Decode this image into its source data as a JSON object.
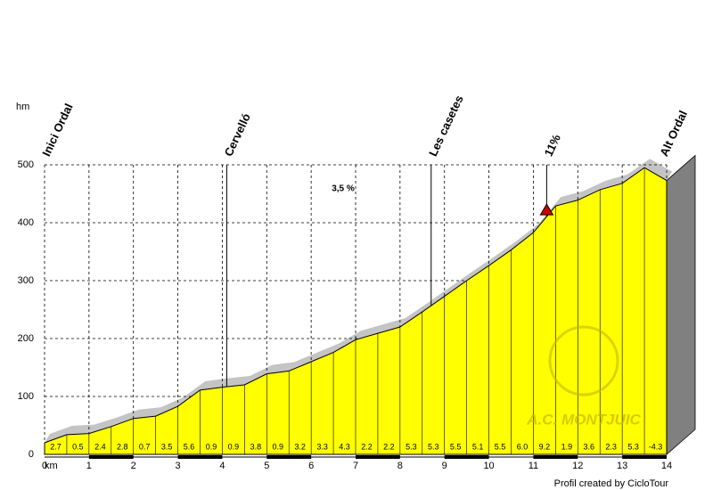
{
  "chart_data": {
    "type": "profile",
    "y_unit": "hm",
    "x_unit": "km",
    "footer": "Profil created by CicloTour",
    "watermark": "A.C. MONTJUIC",
    "note": "3,5 %",
    "x": [
      0,
      0.5,
      1,
      1.5,
      2,
      2.5,
      3,
      3.5,
      4,
      4.5,
      5,
      5.5,
      6,
      6.5,
      7,
      7.5,
      8,
      8.5,
      9,
      9.5,
      10,
      10.5,
      11,
      11.5,
      12,
      12.5,
      13,
      13.5,
      14
    ],
    "elevations": [
      20,
      34,
      36,
      48,
      62,
      66,
      83,
      111,
      116,
      120,
      139,
      144,
      160,
      176,
      198,
      209,
      220,
      246,
      273,
      300,
      326,
      353,
      383,
      429,
      439,
      457,
      468,
      495,
      473
    ],
    "slope_labels": [
      "2.7",
      "0.5",
      "2.4",
      "2.8",
      "0.7",
      "3.5",
      "5.6",
      "0.9",
      "0.9",
      "3.8",
      "0.9",
      "3.2",
      "3.3",
      "4.3",
      "2.2",
      "2.2",
      "5.3",
      "5.3",
      "5.5",
      "5.1",
      "5.5",
      "6.0",
      "9.2",
      "1.9",
      "3.6",
      "2.3",
      "5.3",
      "-4.3"
    ],
    "color": "#ffff00",
    "annotations": [
      {
        "x": 0,
        "label": "Inici Ordal",
        "line": false
      },
      {
        "x": 4.1,
        "label": "Cervelló",
        "line": true
      },
      {
        "x": 8.7,
        "label": "Les casetes",
        "line": true
      },
      {
        "x": 11.3,
        "label": "11%",
        "line": true,
        "marker": "triangle"
      },
      {
        "x": 13.9,
        "label": "Alt Ordal",
        "line": false
      }
    ],
    "xlim": [
      0,
      14
    ],
    "xticks": [
      0,
      1,
      2,
      3,
      4,
      5,
      6,
      7,
      8,
      9,
      10,
      11,
      12,
      13,
      14
    ],
    "ylim": [
      0,
      500
    ],
    "yticks": [
      0,
      100,
      200,
      300,
      400,
      500
    ],
    "grid": true
  }
}
